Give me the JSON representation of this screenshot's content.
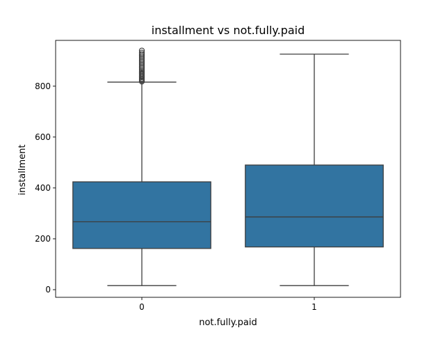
{
  "chart_data": {
    "type": "box",
    "title": "installment vs not.fully.paid",
    "xlabel": "not.fully.paid",
    "ylabel": "installment",
    "categories": [
      "0",
      "1"
    ],
    "ylim": [
      -30,
      980
    ],
    "yticks": [
      0,
      200,
      400,
      600,
      800
    ],
    "grid": false,
    "box_color": "#3274a1",
    "line_color": "#3d3d3d",
    "boxes": [
      {
        "category": "0",
        "whisker_low": 16,
        "q1": 162,
        "median": 267,
        "q3": 424,
        "whisker_high": 816,
        "outliers": [
          818,
          822,
          826,
          830,
          835,
          840,
          845,
          850,
          855,
          860,
          866,
          872,
          878,
          884,
          890,
          896,
          902,
          908,
          914,
          920,
          926,
          932,
          940
        ]
      },
      {
        "category": "1",
        "whisker_low": 16,
        "q1": 168,
        "median": 286,
        "q3": 490,
        "whisker_high": 926,
        "outliers": []
      }
    ]
  }
}
